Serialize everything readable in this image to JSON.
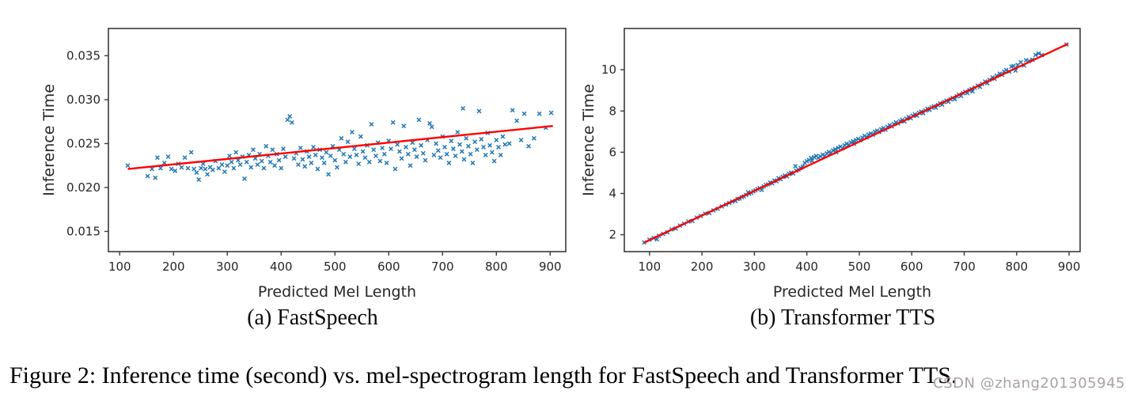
{
  "figure": {
    "caption": "Figure 2: Inference time (second) vs. mel-spectrogram length for FastSpeech and Transformer TTS.",
    "watermark": "CSDN @zhang201305945"
  },
  "colors": {
    "scatter": "#1f77b4",
    "trend": "#ff0000",
    "axis": "#3a3a3a",
    "tick_text": "#262626",
    "watermark_text": "#a39b99"
  },
  "chart_data": [
    {
      "id": "fastspeech",
      "type": "scatter",
      "subcaption": "(a) FastSpeech",
      "xlabel": "Predicted Mel Length",
      "ylabel": "Inference Time",
      "marker": "x",
      "grid": false,
      "xlim": [
        79,
        929
      ],
      "ylim": [
        0.0127,
        0.0381
      ],
      "xticks": [
        100,
        200,
        300,
        400,
        500,
        600,
        700,
        800,
        900
      ],
      "xtick_labels": [
        "100",
        "200",
        "300",
        "400",
        "500",
        "600",
        "700",
        "800",
        "900"
      ],
      "yticks": [
        0.015,
        0.02,
        0.025,
        0.03,
        0.035
      ],
      "ytick_labels": [
        "0.015",
        "0.020",
        "0.025",
        "0.030",
        "0.035"
      ],
      "trend_line": [
        [
          115,
          0.0221
        ],
        [
          905,
          0.027
        ]
      ],
      "points": [
        [
          115,
          0.0225
        ],
        [
          152,
          0.0213
        ],
        [
          160,
          0.0221
        ],
        [
          166,
          0.0211
        ],
        [
          170,
          0.0234
        ],
        [
          176,
          0.0222
        ],
        [
          183,
          0.0228
        ],
        [
          190,
          0.0235
        ],
        [
          196,
          0.0221
        ],
        [
          203,
          0.0219
        ],
        [
          209,
          0.0227
        ],
        [
          215,
          0.0223
        ],
        [
          221,
          0.0234
        ],
        [
          227,
          0.0222
        ],
        [
          233,
          0.024
        ],
        [
          238,
          0.0221
        ],
        [
          243,
          0.0217
        ],
        [
          247,
          0.0209
        ],
        [
          251,
          0.0222
        ],
        [
          255,
          0.0227
        ],
        [
          259,
          0.0221
        ],
        [
          263,
          0.0215
        ],
        [
          268,
          0.0223
        ],
        [
          273,
          0.022
        ],
        [
          278,
          0.023
        ],
        [
          284,
          0.0222
        ],
        [
          290,
          0.0226
        ],
        [
          295,
          0.0218
        ],
        [
          300,
          0.0225
        ],
        [
          304,
          0.0236
        ],
        [
          308,
          0.0229
        ],
        [
          312,
          0.0222
        ],
        [
          316,
          0.024
        ],
        [
          320,
          0.0231
        ],
        [
          324,
          0.0226
        ],
        [
          328,
          0.0235
        ],
        [
          332,
          0.021
        ],
        [
          336,
          0.0229
        ],
        [
          340,
          0.0237
        ],
        [
          344,
          0.0223
        ],
        [
          348,
          0.0243
        ],
        [
          352,
          0.0233
        ],
        [
          356,
          0.0226
        ],
        [
          360,
          0.0238
        ],
        [
          364,
          0.023
        ],
        [
          368,
          0.0222
        ],
        [
          372,
          0.0247
        ],
        [
          376,
          0.0236
        ],
        [
          380,
          0.0229
        ],
        [
          384,
          0.0243
        ],
        [
          388,
          0.0225
        ],
        [
          392,
          0.0238
        ],
        [
          396,
          0.0231
        ],
        [
          400,
          0.0222
        ],
        [
          404,
          0.0244
        ],
        [
          408,
          0.0235
        ],
        [
          412,
          0.0277
        ],
        [
          416,
          0.0281
        ],
        [
          420,
          0.0274
        ],
        [
          424,
          0.0233
        ],
        [
          428,
          0.0239
        ],
        [
          432,
          0.0226
        ],
        [
          436,
          0.0245
        ],
        [
          440,
          0.0232
        ],
        [
          444,
          0.0224
        ],
        [
          448,
          0.0241
        ],
        [
          452,
          0.0235
        ],
        [
          456,
          0.0228
        ],
        [
          460,
          0.0246
        ],
        [
          464,
          0.0237
        ],
        [
          468,
          0.0221
        ],
        [
          472,
          0.0243
        ],
        [
          476,
          0.0234
        ],
        [
          480,
          0.0228
        ],
        [
          484,
          0.024
        ],
        [
          488,
          0.0215
        ],
        [
          492,
          0.0236
        ],
        [
          496,
          0.0247
        ],
        [
          500,
          0.0231
        ],
        [
          504,
          0.0223
        ],
        [
          508,
          0.0243
        ],
        [
          512,
          0.0256
        ],
        [
          516,
          0.0238
        ],
        [
          520,
          0.0229
        ],
        [
          524,
          0.0252
        ],
        [
          528,
          0.0235
        ],
        [
          532,
          0.0263
        ],
        [
          536,
          0.0244
        ],
        [
          540,
          0.0237
        ],
        [
          544,
          0.0227
        ],
        [
          548,
          0.0258
        ],
        [
          552,
          0.0241
        ],
        [
          556,
          0.0234
        ],
        [
          560,
          0.0248
        ],
        [
          564,
          0.0229
        ],
        [
          568,
          0.0272
        ],
        [
          572,
          0.0243
        ],
        [
          576,
          0.0236
        ],
        [
          580,
          0.0251
        ],
        [
          584,
          0.023
        ],
        [
          588,
          0.0245
        ],
        [
          592,
          0.0238
        ],
        [
          596,
          0.0228
        ],
        [
          600,
          0.0253
        ],
        [
          604,
          0.0244
        ],
        [
          608,
          0.0274
        ],
        [
          612,
          0.0221
        ],
        [
          616,
          0.0249
        ],
        [
          620,
          0.0241
        ],
        [
          624,
          0.0233
        ],
        [
          628,
          0.027
        ],
        [
          632,
          0.0246
        ],
        [
          636,
          0.0238
        ],
        [
          640,
          0.0225
        ],
        [
          644,
          0.0251
        ],
        [
          648,
          0.0243
        ],
        [
          652,
          0.0235
        ],
        [
          656,
          0.0277
        ],
        [
          660,
          0.0248
        ],
        [
          664,
          0.0239
        ],
        [
          668,
          0.0231
        ],
        [
          672,
          0.0254
        ],
        [
          676,
          0.0273
        ],
        [
          680,
          0.0269
        ],
        [
          684,
          0.0237
        ],
        [
          688,
          0.025
        ],
        [
          692,
          0.0242
        ],
        [
          696,
          0.0234
        ],
        [
          700,
          0.0258
        ],
        [
          704,
          0.0246
        ],
        [
          708,
          0.0238
        ],
        [
          712,
          0.0228
        ],
        [
          716,
          0.0253
        ],
        [
          720,
          0.0244
        ],
        [
          724,
          0.0236
        ],
        [
          728,
          0.0263
        ],
        [
          732,
          0.0249
        ],
        [
          736,
          0.0241
        ],
        [
          738,
          0.029
        ],
        [
          740,
          0.0232
        ],
        [
          744,
          0.0256
        ],
        [
          748,
          0.0247
        ],
        [
          752,
          0.0238
        ],
        [
          756,
          0.0228
        ],
        [
          760,
          0.0252
        ],
        [
          764,
          0.0243
        ],
        [
          768,
          0.0287
        ],
        [
          772,
          0.0255
        ],
        [
          776,
          0.0246
        ],
        [
          780,
          0.0237
        ],
        [
          784,
          0.0262
        ],
        [
          788,
          0.0248
        ],
        [
          792,
          0.024
        ],
        [
          796,
          0.023
        ],
        [
          800,
          0.0254
        ],
        [
          804,
          0.0246
        ],
        [
          808,
          0.0237
        ],
        [
          812,
          0.0258
        ],
        [
          816,
          0.0249
        ],
        [
          824,
          0.025
        ],
        [
          830,
          0.0288
        ],
        [
          838,
          0.0276
        ],
        [
          846,
          0.0254
        ],
        [
          852,
          0.0284
        ],
        [
          860,
          0.0247
        ],
        [
          870,
          0.0256
        ],
        [
          880,
          0.0284
        ],
        [
          892,
          0.0268
        ],
        [
          902,
          0.0285
        ]
      ]
    },
    {
      "id": "transformer-tts",
      "type": "scatter",
      "subcaption": "(b) Transformer TTS",
      "xlabel": "Predicted Mel Length",
      "ylabel": "Inference Time",
      "marker": "x",
      "grid": false,
      "xlim": [
        52,
        921
      ],
      "ylim": [
        1.18,
        12.0
      ],
      "xticks": [
        100,
        200,
        300,
        400,
        500,
        600,
        700,
        800,
        900
      ],
      "xtick_labels": [
        "100",
        "200",
        "300",
        "400",
        "500",
        "600",
        "700",
        "800",
        "900"
      ],
      "yticks": [
        2,
        4,
        6,
        8,
        10
      ],
      "ytick_labels": [
        "2",
        "4",
        "6",
        "8",
        "10"
      ],
      "trend_line": [
        [
          90,
          1.62
        ],
        [
          898,
          11.26
        ]
      ],
      "points": [
        [
          90,
          1.62
        ],
        [
          100,
          1.76
        ],
        [
          108,
          1.84
        ],
        [
          114,
          1.78
        ],
        [
          118,
          1.95
        ],
        [
          126,
          2.04
        ],
        [
          134,
          2.12
        ],
        [
          142,
          2.26
        ],
        [
          150,
          2.3
        ],
        [
          158,
          2.44
        ],
        [
          166,
          2.53
        ],
        [
          174,
          2.64
        ],
        [
          182,
          2.67
        ],
        [
          190,
          2.83
        ],
        [
          198,
          2.91
        ],
        [
          206,
          3.02
        ],
        [
          214,
          3.05
        ],
        [
          222,
          3.18
        ],
        [
          230,
          3.26
        ],
        [
          238,
          3.37
        ],
        [
          246,
          3.46
        ],
        [
          252,
          3.54
        ],
        [
          258,
          3.61
        ],
        [
          264,
          3.64
        ],
        [
          268,
          3.73
        ],
        [
          272,
          3.75
        ],
        [
          276,
          3.82
        ],
        [
          280,
          3.86
        ],
        [
          284,
          3.93
        ],
        [
          288,
          4.06
        ],
        [
          290,
          3.98
        ],
        [
          294,
          4.03
        ],
        [
          298,
          4.1
        ],
        [
          302,
          4.15
        ],
        [
          306,
          4.21
        ],
        [
          310,
          4.26
        ],
        [
          314,
          4.17
        ],
        [
          318,
          4.34
        ],
        [
          322,
          4.41
        ],
        [
          326,
          4.44
        ],
        [
          330,
          4.53
        ],
        [
          334,
          4.49
        ],
        [
          338,
          4.63
        ],
        [
          342,
          4.59
        ],
        [
          346,
          4.74
        ],
        [
          350,
          4.69
        ],
        [
          354,
          4.81
        ],
        [
          358,
          4.87
        ],
        [
          362,
          4.83
        ],
        [
          366,
          4.95
        ],
        [
          370,
          5.01
        ],
        [
          374,
          4.97
        ],
        [
          378,
          5.32
        ],
        [
          380,
          5.1
        ],
        [
          384,
          5.16
        ],
        [
          388,
          5.24
        ],
        [
          392,
          5.3
        ],
        [
          396,
          5.48
        ],
        [
          400,
          5.56
        ],
        [
          404,
          5.62
        ],
        [
          408,
          5.72
        ],
        [
          410,
          5.58
        ],
        [
          414,
          5.76
        ],
        [
          418,
          5.82
        ],
        [
          422,
          5.73
        ],
        [
          426,
          5.8
        ],
        [
          430,
          5.88
        ],
        [
          434,
          5.82
        ],
        [
          438,
          5.94
        ],
        [
          442,
          6.01
        ],
        [
          446,
          5.96
        ],
        [
          450,
          6.09
        ],
        [
          454,
          6.15
        ],
        [
          456,
          5.99
        ],
        [
          460,
          6.21
        ],
        [
          464,
          6.27
        ],
        [
          468,
          6.19
        ],
        [
          472,
          6.34
        ],
        [
          476,
          6.41
        ],
        [
          480,
          6.36
        ],
        [
          484,
          6.47
        ],
        [
          488,
          6.53
        ],
        [
          490,
          6.41
        ],
        [
          494,
          6.59
        ],
        [
          498,
          6.65
        ],
        [
          502,
          6.58
        ],
        [
          506,
          6.71
        ],
        [
          510,
          6.79
        ],
        [
          514,
          6.73
        ],
        [
          518,
          6.86
        ],
        [
          522,
          6.91
        ],
        [
          526,
          6.85
        ],
        [
          530,
          6.99
        ],
        [
          534,
          7.05
        ],
        [
          538,
          6.98
        ],
        [
          542,
          7.11
        ],
        [
          546,
          7.17
        ],
        [
          550,
          7.09
        ],
        [
          554,
          7.23
        ],
        [
          558,
          7.31
        ],
        [
          562,
          7.25
        ],
        [
          566,
          7.37
        ],
        [
          570,
          7.45
        ],
        [
          574,
          7.39
        ],
        [
          578,
          7.51
        ],
        [
          582,
          7.57
        ],
        [
          586,
          7.49
        ],
        [
          590,
          7.63
        ],
        [
          594,
          7.71
        ],
        [
          598,
          7.65
        ],
        [
          602,
          7.77
        ],
        [
          606,
          7.84
        ],
        [
          610,
          7.77
        ],
        [
          614,
          7.91
        ],
        [
          618,
          7.97
        ],
        [
          622,
          7.89
        ],
        [
          626,
          8.03
        ],
        [
          630,
          8.11
        ],
        [
          634,
          8.05
        ],
        [
          638,
          8.17
        ],
        [
          642,
          8.23
        ],
        [
          646,
          8.16
        ],
        [
          650,
          8.29
        ],
        [
          654,
          8.37
        ],
        [
          658,
          8.31
        ],
        [
          662,
          8.43
        ],
        [
          666,
          8.51
        ],
        [
          670,
          8.45
        ],
        [
          674,
          8.57
        ],
        [
          678,
          8.63
        ],
        [
          682,
          8.57
        ],
        [
          686,
          8.71
        ],
        [
          690,
          8.79
        ],
        [
          694,
          8.73
        ],
        [
          698,
          8.86
        ],
        [
          702,
          8.93
        ],
        [
          706,
          8.87
        ],
        [
          710,
          9.01
        ],
        [
          714,
          9.07
        ],
        [
          716,
          8.95
        ],
        [
          720,
          9.13
        ],
        [
          726,
          9.23
        ],
        [
          730,
          9.17
        ],
        [
          734,
          9.31
        ],
        [
          740,
          9.43
        ],
        [
          744,
          9.35
        ],
        [
          748,
          9.51
        ],
        [
          754,
          9.63
        ],
        [
          758,
          9.56
        ],
        [
          762,
          9.71
        ],
        [
          768,
          9.81
        ],
        [
          772,
          9.75
        ],
        [
          776,
          9.91
        ],
        [
          780,
          9.99
        ],
        [
          786,
          9.91
        ],
        [
          790,
          10.15
        ],
        [
          794,
          10.18
        ],
        [
          798,
          9.96
        ],
        [
          802,
          10.23
        ],
        [
          808,
          10.36
        ],
        [
          814,
          10.21
        ],
        [
          818,
          10.46
        ],
        [
          824,
          10.42
        ],
        [
          830,
          10.49
        ],
        [
          836,
          10.72
        ],
        [
          842,
          10.79
        ],
        [
          848,
          10.71
        ],
        [
          895,
          11.22
        ]
      ]
    }
  ]
}
